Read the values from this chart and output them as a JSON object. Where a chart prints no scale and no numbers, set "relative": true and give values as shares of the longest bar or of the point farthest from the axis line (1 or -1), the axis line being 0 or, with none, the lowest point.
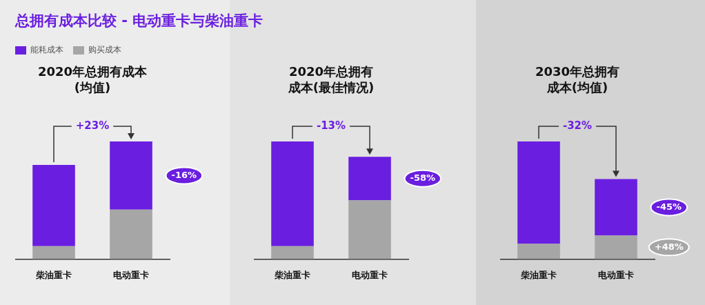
{
  "chart_data": [
    {
      "type": "bar",
      "title": "总拥有成本比较 - 电动重卡与柴油重卡",
      "subtitle": "2020年总拥有成本(均值)",
      "categories": [
        "柴油重卡",
        "电动重卡"
      ],
      "stacked": true,
      "relative": true,
      "legend": "top left",
      "series": [
        {
          "name": "购买成本",
          "color": "#a6a6a6",
          "values": [
            0.11,
            0.42
          ]
        },
        {
          "name": "能耗成本",
          "color": "#6a1ee0",
          "values": [
            0.69,
            0.58
          ]
        }
      ],
      "annotations": [
        "+23%",
        "-16%"
      ]
    },
    {
      "type": "bar",
      "subtitle": "2020年总拥有成本(最佳情况)",
      "categories": [
        "柴油重卡",
        "电动重卡"
      ],
      "stacked": true,
      "relative": true,
      "series": [
        {
          "color": "#a6a6a6",
          "values": [
            0.11,
            0.5
          ]
        },
        {
          "color": "#6a1ee0",
          "values": [
            0.89,
            0.37
          ]
        }
      ],
      "annotations": [
        "-13%",
        "-58%"
      ]
    },
    {
      "type": "bar",
      "subtitle": "2030年总拥有成本(均值)",
      "categories": [
        "柴油重卡",
        "电动重卡"
      ],
      "stacked": true,
      "relative": true,
      "series": [
        {
          "color": "#a6a6a6",
          "values": [
            0.13,
            0.2
          ]
        },
        {
          "color": "#6a1ee0",
          "values": [
            0.87,
            0.48
          ]
        }
      ],
      "annotations": [
        "-32%",
        "-45%",
        "+48%"
      ]
    }
  ]
}
